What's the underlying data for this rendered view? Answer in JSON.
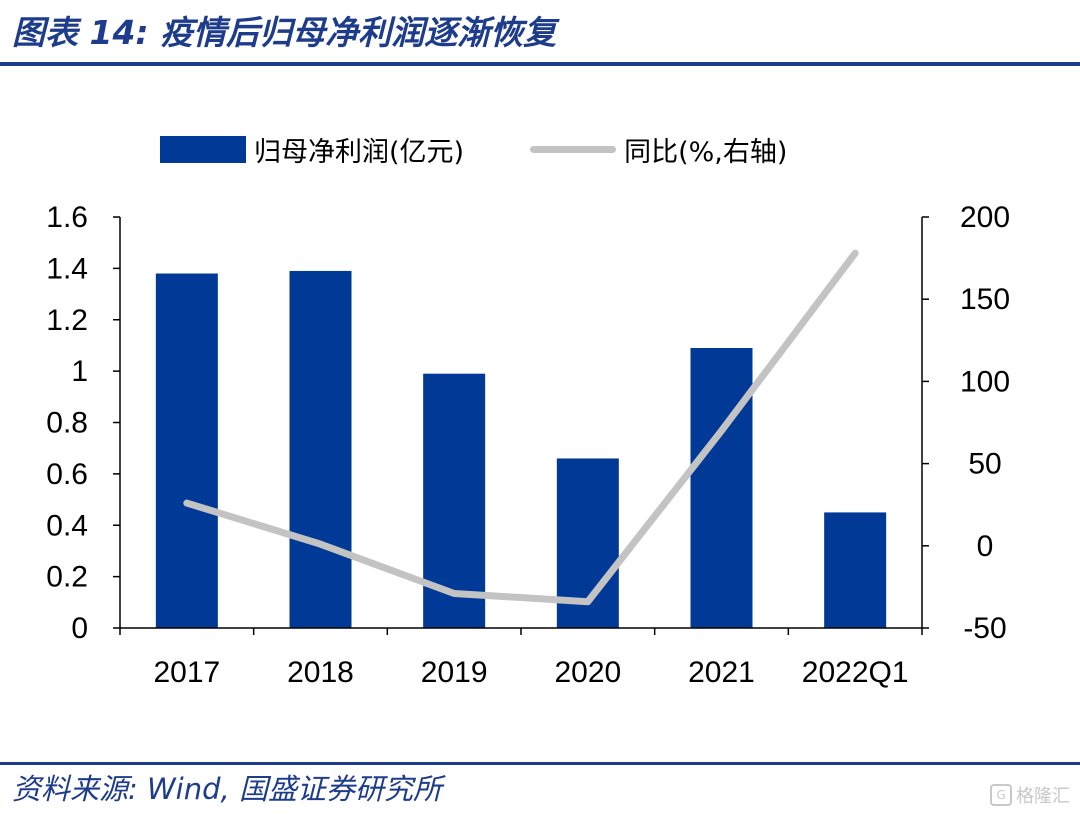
{
  "title": "图表 14:  疫情后归母净利润逐渐恢复",
  "source": "资料来源:  Wind,  国盛证券研究所",
  "watermark": {
    "text": "格隆汇",
    "icon": "gelonghui-logo-icon"
  },
  "colors": {
    "bar": "#003a96",
    "line": "#c3c3c3",
    "rule": "#1e3c8c",
    "axis": "#000000"
  },
  "legend": {
    "bar_label": "归母净利润(亿元)",
    "line_label": "同比(%,右轴)",
    "position": "top"
  },
  "chart_data": {
    "type": "bar",
    "categories": [
      "2017",
      "2018",
      "2019",
      "2020",
      "2021",
      "2022Q1"
    ],
    "series": [
      {
        "name": "归母净利润(亿元)",
        "type": "bar",
        "axis": "left",
        "values": [
          1.38,
          1.39,
          0.99,
          0.66,
          1.09,
          0.45
        ]
      },
      {
        "name": "同比(%,右轴)",
        "type": "line",
        "axis": "right",
        "values": [
          26,
          1,
          -29,
          -34,
          70,
          178
        ]
      }
    ],
    "y_left": {
      "min": 0,
      "max": 1.6,
      "ticks": [
        "0",
        "0.2",
        "0.4",
        "0.6",
        "0.8",
        "1",
        "1.2",
        "1.4",
        "1.6"
      ]
    },
    "y_right": {
      "min": -50,
      "max": 200,
      "ticks": [
        "-50",
        "0",
        "50",
        "100",
        "150",
        "200"
      ]
    },
    "grid": false
  }
}
